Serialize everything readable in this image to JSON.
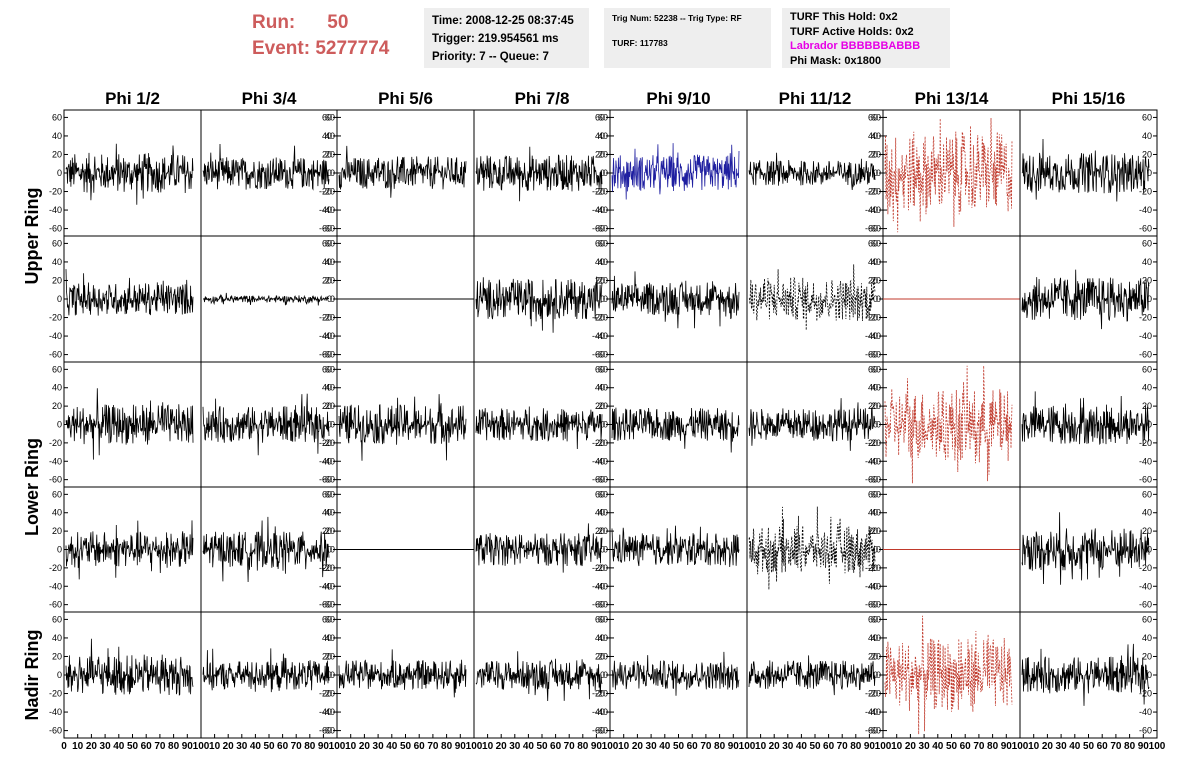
{
  "header": {
    "run_label": "Run:",
    "run_value": "50",
    "event_label": "Event:",
    "event_value": "5277774",
    "time": "Time: 2008-12-25 08:37:45",
    "trigger": "Trigger: 219.954561 ms",
    "priority": "Priority: 7 -- Queue: 7",
    "trig_num": "Trig Num: 52238 -- Trig Type: RF",
    "turf": "TURF: 117783",
    "turf_this_hold": "TURF This Hold: 0x2",
    "turf_active_holds": "TURF Active Holds: 0x2",
    "labrador": "Labrador BBBBBBABBB",
    "phi_mask": "Phi Mask: 0x1800"
  },
  "colors": {
    "header_red": "#cd5c5c",
    "magenta": "#e600e6",
    "waveform": "#000000",
    "highlight_blue": "#1f1fa0",
    "masked_red": "#c0392b"
  },
  "chart_data": {
    "type": "line",
    "columns": [
      "Phi 1/2",
      "Phi 3/4",
      "Phi 5/6",
      "Phi 7/8",
      "Phi 9/10",
      "Phi 11/12",
      "Phi 13/14",
      "Phi 15/16"
    ],
    "ring_labels": [
      "Upper Ring",
      "Lower Ring",
      "Nadir Ring"
    ],
    "y_ticks": [
      "60",
      "40",
      "20",
      "0",
      "-20",
      "-40",
      "-60"
    ],
    "x_ticks": [
      "0",
      "10",
      "20",
      "30",
      "40",
      "50",
      "60",
      "70",
      "80",
      "90",
      "100"
    ],
    "xlim": [
      0,
      100
    ],
    "ylim": [
      -68,
      68
    ],
    "grid": false,
    "panels": [
      {
        "row": 0,
        "col": 0,
        "amp": 22,
        "style": "solid",
        "color": "#000000"
      },
      {
        "row": 0,
        "col": 1,
        "amp": 18,
        "style": "solid",
        "color": "#000000"
      },
      {
        "row": 0,
        "col": 2,
        "amp": 18,
        "style": "solid",
        "color": "#000000"
      },
      {
        "row": 0,
        "col": 3,
        "amp": 20,
        "style": "solid",
        "color": "#000000"
      },
      {
        "row": 0,
        "col": 4,
        "amp": 20,
        "style": "solid",
        "color": "#1f1fa0"
      },
      {
        "row": 0,
        "col": 5,
        "amp": 14,
        "style": "solid",
        "color": "#000000"
      },
      {
        "row": 0,
        "col": 6,
        "amp": 45,
        "style": "dashed",
        "color": "#c0392b"
      },
      {
        "row": 0,
        "col": 7,
        "amp": 22,
        "style": "solid",
        "color": "#000000"
      },
      {
        "row": 1,
        "col": 0,
        "amp": 18,
        "style": "solid",
        "color": "#000000"
      },
      {
        "row": 1,
        "col": 1,
        "amp": 4,
        "style": "solid",
        "color": "#000000"
      },
      {
        "row": 1,
        "col": 2,
        "amp": 0,
        "style": "flat",
        "color": "#000000"
      },
      {
        "row": 1,
        "col": 3,
        "amp": 22,
        "style": "solid",
        "color": "#000000"
      },
      {
        "row": 1,
        "col": 4,
        "amp": 18,
        "style": "solid",
        "color": "#000000"
      },
      {
        "row": 1,
        "col": 5,
        "amp": 24,
        "style": "dashed",
        "color": "#000000"
      },
      {
        "row": 1,
        "col": 6,
        "amp": 0,
        "style": "flat",
        "color": "#c0392b"
      },
      {
        "row": 1,
        "col": 7,
        "amp": 24,
        "style": "solid",
        "color": "#000000"
      },
      {
        "row": 2,
        "col": 0,
        "amp": 22,
        "style": "solid",
        "color": "#000000"
      },
      {
        "row": 2,
        "col": 1,
        "amp": 20,
        "style": "solid",
        "color": "#000000"
      },
      {
        "row": 2,
        "col": 2,
        "amp": 22,
        "style": "solid",
        "color": "#000000"
      },
      {
        "row": 2,
        "col": 3,
        "amp": 18,
        "style": "solid",
        "color": "#000000"
      },
      {
        "row": 2,
        "col": 4,
        "amp": 18,
        "style": "solid",
        "color": "#000000"
      },
      {
        "row": 2,
        "col": 5,
        "amp": 18,
        "style": "solid",
        "color": "#000000"
      },
      {
        "row": 2,
        "col": 6,
        "amp": 40,
        "style": "dashed",
        "color": "#c0392b"
      },
      {
        "row": 2,
        "col": 7,
        "amp": 22,
        "style": "solid",
        "color": "#000000"
      },
      {
        "row": 3,
        "col": 0,
        "amp": 20,
        "style": "solid",
        "color": "#000000"
      },
      {
        "row": 3,
        "col": 1,
        "amp": 20,
        "style": "solid",
        "color": "#000000"
      },
      {
        "row": 3,
        "col": 2,
        "amp": 0,
        "style": "flat",
        "color": "#000000"
      },
      {
        "row": 3,
        "col": 3,
        "amp": 18,
        "style": "solid",
        "color": "#000000"
      },
      {
        "row": 3,
        "col": 4,
        "amp": 18,
        "style": "solid",
        "color": "#000000"
      },
      {
        "row": 3,
        "col": 5,
        "amp": 26,
        "style": "dashed",
        "color": "#000000"
      },
      {
        "row": 3,
        "col": 6,
        "amp": 0,
        "style": "flat",
        "color": "#c0392b"
      },
      {
        "row": 3,
        "col": 7,
        "amp": 24,
        "style": "solid",
        "color": "#000000"
      },
      {
        "row": 4,
        "col": 0,
        "amp": 22,
        "style": "solid",
        "color": "#000000"
      },
      {
        "row": 4,
        "col": 1,
        "amp": 16,
        "style": "solid",
        "color": "#000000"
      },
      {
        "row": 4,
        "col": 2,
        "amp": 16,
        "style": "solid",
        "color": "#000000"
      },
      {
        "row": 4,
        "col": 3,
        "amp": 16,
        "style": "solid",
        "color": "#000000"
      },
      {
        "row": 4,
        "col": 4,
        "amp": 16,
        "style": "solid",
        "color": "#000000"
      },
      {
        "row": 4,
        "col": 5,
        "amp": 16,
        "style": "solid",
        "color": "#000000"
      },
      {
        "row": 4,
        "col": 6,
        "amp": 40,
        "style": "dashed",
        "color": "#c0392b"
      },
      {
        "row": 4,
        "col": 7,
        "amp": 20,
        "style": "solid",
        "color": "#000000"
      }
    ]
  }
}
